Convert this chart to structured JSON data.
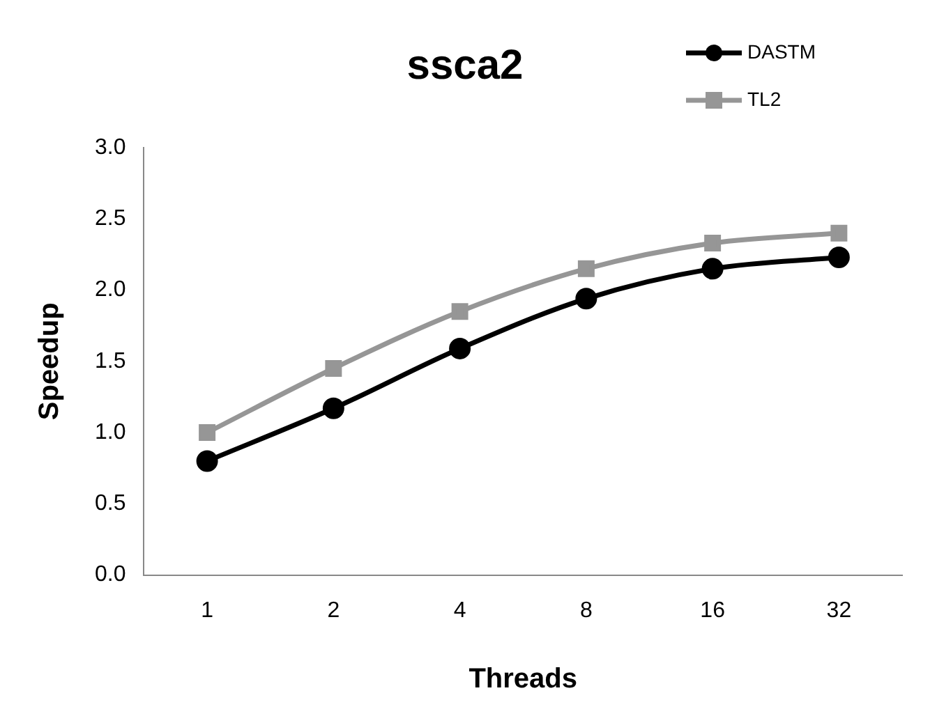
{
  "chart_data": {
    "type": "line",
    "title": "ssca2",
    "xlabel": "Threads",
    "ylabel": "Speedup",
    "categories": [
      "1",
      "2",
      "4",
      "8",
      "16",
      "32"
    ],
    "series": [
      {
        "name": "DASTM",
        "color": "#000000",
        "marker": "circle",
        "values": [
          0.8,
          1.17,
          1.59,
          1.94,
          2.15,
          2.23
        ]
      },
      {
        "name": "TL2",
        "color": "#969696",
        "marker": "square",
        "values": [
          1.0,
          1.45,
          1.85,
          2.15,
          2.33,
          2.4
        ]
      }
    ],
    "ylim": [
      0,
      3
    ],
    "yticks": [
      {
        "value": 0,
        "label": "0.0"
      },
      {
        "value": 0.5,
        "label": "0.5"
      },
      {
        "value": 1,
        "label": "1.0"
      },
      {
        "value": 1.5,
        "label": "1.5"
      },
      {
        "value": 2,
        "label": "2.0"
      },
      {
        "value": 2.5,
        "label": "2.5"
      },
      {
        "value": 3,
        "label": "3.0"
      }
    ],
    "grid": false,
    "legend": "top right",
    "line_style": "solid"
  }
}
